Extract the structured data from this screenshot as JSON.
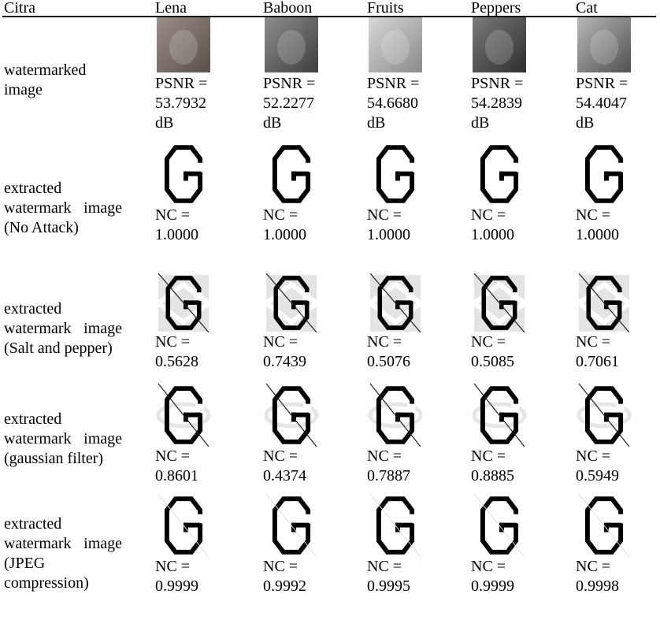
{
  "table": {
    "header": [
      "Citra",
      "Lena",
      "Baboon",
      "Fruits",
      "Peppers",
      "Cat"
    ],
    "rows": [
      {
        "label": "watermarked image",
        "cells": [
          "PSNR = 53.7932 dB",
          "PSNR = 52.2277 dB",
          "PSNR = 54.6680 dB",
          "PSNR = 54.2839 dB",
          "PSNR = 54.4047 dB"
        ]
      },
      {
        "label": "extracted watermark image (No Attack)",
        "cells": [
          "NC = 1.0000",
          "NC = 1.0000",
          "NC = 1.0000",
          "NC = 1.0000",
          "NC = 1.0000"
        ]
      },
      {
        "label": "extracted watermark image (Salt and pepper)",
        "cells": [
          "NC = 0.5628",
          "NC = 0.7439",
          "NC = 0.5076",
          "NC = 0.5085",
          "NC = 0.7061"
        ]
      },
      {
        "label": "extracted watermark image (gaussian filter)",
        "cells": [
          "NC = 0.8601",
          "NC = 0.4374",
          "NC = 0.7887",
          "NC = 0.8885",
          "NC = 0.5949"
        ]
      },
      {
        "label": "extracted watermark image (JPEG compression)",
        "cells": [
          "NC = 0.9999",
          "NC = 0.9992",
          "NC = 0.9995",
          "NC = 0.9999",
          "NC = 0.9998"
        ]
      }
    ]
  }
}
